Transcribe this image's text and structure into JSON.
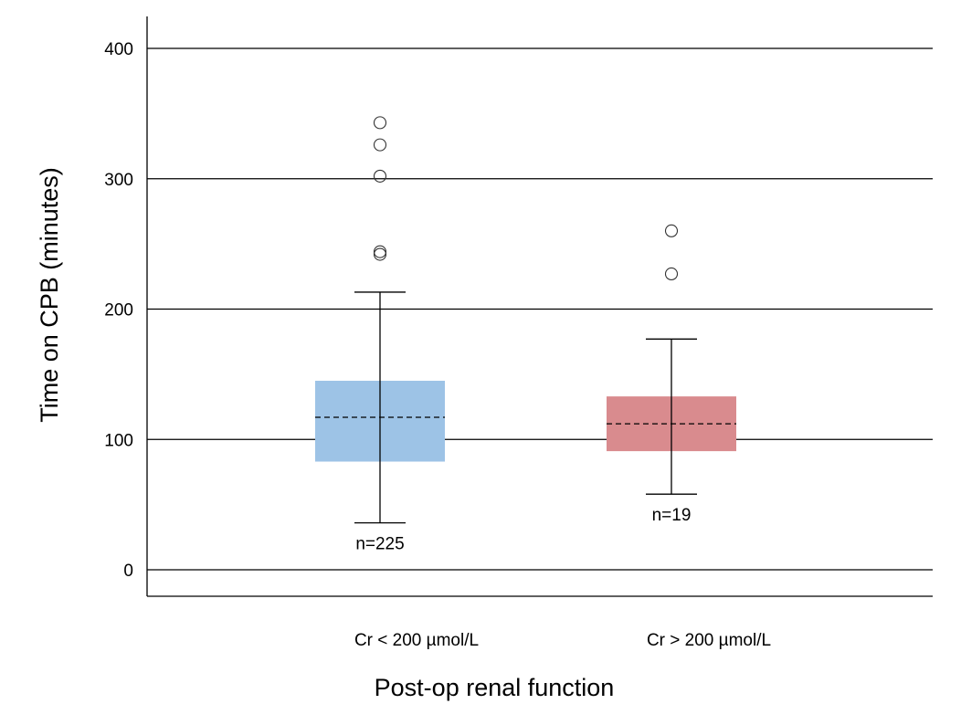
{
  "chart_data": {
    "type": "box",
    "xlabel": "Post-op renal function",
    "ylabel": "Time on CPB (minutes)",
    "ylim": [
      -20,
      420
    ],
    "yticks": [
      0,
      100,
      200,
      300,
      400
    ],
    "grid": "horizontal",
    "series": [
      {
        "category": "Cr < 200 µmol/L",
        "n_label": "n=225",
        "color": "#9dc3e6",
        "whisker_low": 36,
        "q1": 83,
        "median": 117,
        "q3": 145,
        "whisker_high": 213,
        "outliers": [
          242,
          244,
          302,
          326,
          343
        ]
      },
      {
        "category": "Cr > 200 µmol/L",
        "n_label": "n=19",
        "color": "#d98b8e",
        "whisker_low": 58,
        "q1": 91,
        "median": 112,
        "q3": 133,
        "whisker_high": 177,
        "outliers": [
          227,
          260
        ]
      }
    ]
  }
}
